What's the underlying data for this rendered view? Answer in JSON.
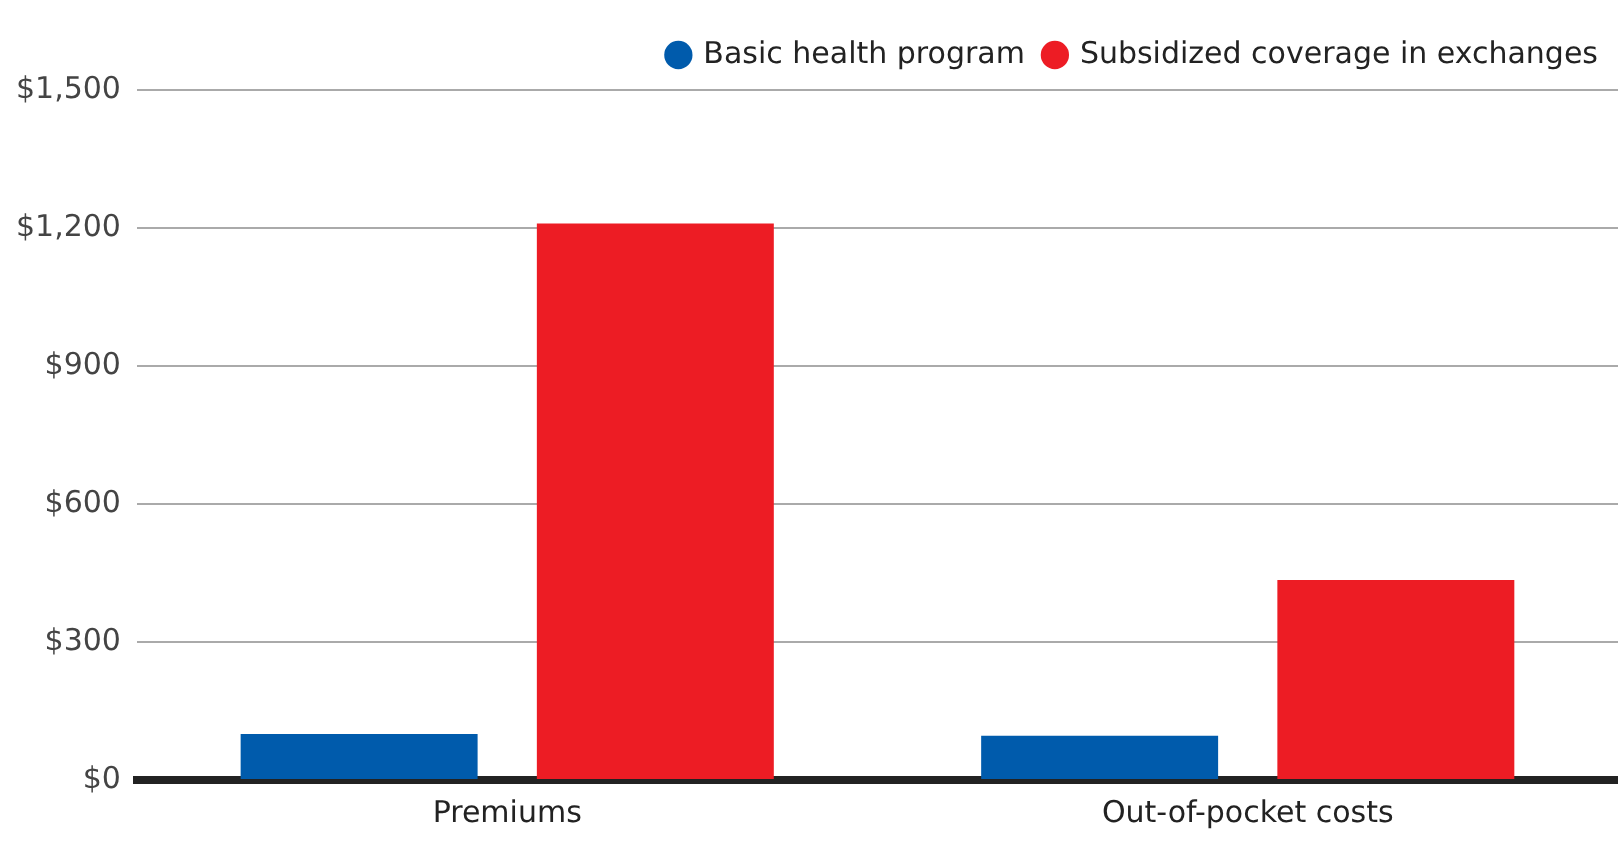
{
  "chart_data": {
    "type": "bar",
    "categories": [
      "Premiums",
      "Out-of-pocket costs"
    ],
    "series": [
      {
        "name": "Basic health program",
        "color": "#005bac",
        "values": [
          100,
          96
        ]
      },
      {
        "name": "Subsidized coverage in exchanges",
        "color": "#ed1c24",
        "values": [
          1210,
          435
        ]
      }
    ],
    "ylim": [
      0,
      1500
    ],
    "yticks": [
      {
        "value": 0,
        "label": "$0"
      },
      {
        "value": 300,
        "label": "$300"
      },
      {
        "value": 600,
        "label": "$600"
      },
      {
        "value": 900,
        "label": "$900"
      },
      {
        "value": 1200,
        "label": "$1,200"
      },
      {
        "value": 1500,
        "label": "$1,500"
      }
    ],
    "grid": "y",
    "legend": "top right",
    "marker": "circle"
  }
}
